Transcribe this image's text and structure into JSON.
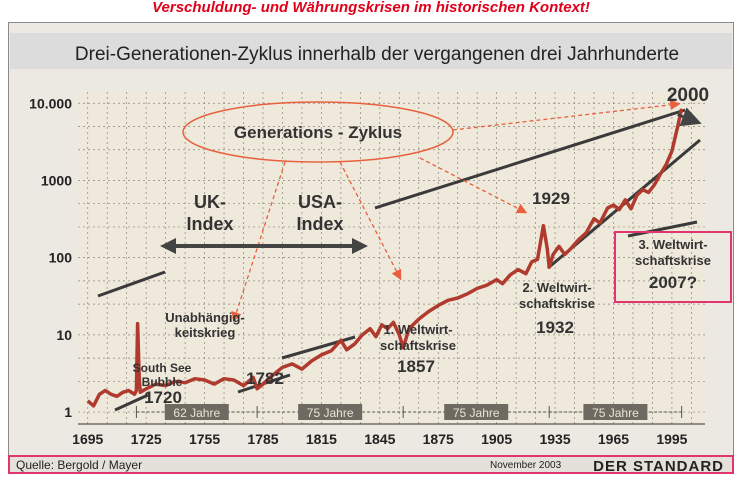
{
  "page_title": "Verschuldung- und Währungskrisen im historischen Kontext!",
  "chart_data": {
    "type": "line",
    "title": "Drei-Generationen-Zyklus innerhalb der vergangenen drei Jahrhunderte",
    "y_scale": "log",
    "ylim": [
      0.7,
      14000
    ],
    "xlim": [
      1690,
      2012
    ],
    "y_ticks": [
      1,
      10,
      100,
      1000,
      10000
    ],
    "y_tick_labels": [
      "1",
      "10",
      "100",
      "1000",
      "10.000"
    ],
    "x_ticks": [
      1695,
      1725,
      1755,
      1785,
      1815,
      1845,
      1875,
      1905,
      1935,
      1965,
      1995
    ],
    "x_tick_labels": [
      "1695",
      "1725",
      "1755",
      "1785",
      "1815",
      "1845",
      "1875",
      "1905",
      "1935",
      "1965",
      "1995"
    ],
    "grid": true,
    "series": [
      {
        "points": [
          [
            1695,
            1.4
          ],
          [
            1698,
            1.2
          ],
          [
            1701,
            1.7
          ],
          [
            1704,
            1.9
          ],
          [
            1707,
            1.7
          ],
          [
            1710,
            1.6
          ],
          [
            1713,
            1.8
          ],
          [
            1716,
            1.9
          ],
          [
            1719,
            1.7
          ],
          [
            1720,
            1.9
          ],
          [
            1720.6,
            14
          ],
          [
            1721.5,
            2.6
          ],
          [
            1722,
            1.8
          ],
          [
            1725,
            2.0
          ],
          [
            1730,
            2.3
          ],
          [
            1735,
            2.2
          ],
          [
            1740,
            2.5
          ],
          [
            1745,
            2.4
          ],
          [
            1750,
            2.7
          ],
          [
            1755,
            2.6
          ],
          [
            1760,
            2.3
          ],
          [
            1765,
            2.7
          ],
          [
            1770,
            2.6
          ],
          [
            1775,
            2.2
          ],
          [
            1780,
            2.8
          ],
          [
            1782,
            2.0
          ],
          [
            1785,
            2.3
          ],
          [
            1790,
            3.0
          ],
          [
            1795,
            3.8
          ],
          [
            1800,
            4.2
          ],
          [
            1805,
            3.6
          ],
          [
            1810,
            4.6
          ],
          [
            1815,
            5.5
          ],
          [
            1820,
            6.2
          ],
          [
            1825,
            8.5
          ],
          [
            1828,
            6.4
          ],
          [
            1832,
            7.6
          ],
          [
            1836,
            10.0
          ],
          [
            1840,
            12.0
          ],
          [
            1843,
            9.5
          ],
          [
            1846,
            13.5
          ],
          [
            1849,
            12.0
          ],
          [
            1852,
            14.5
          ],
          [
            1855,
            10.0
          ],
          [
            1857,
            6.8
          ],
          [
            1860,
            12.0
          ],
          [
            1865,
            16.0
          ],
          [
            1870,
            20.0
          ],
          [
            1875,
            24.0
          ],
          [
            1880,
            28.0
          ],
          [
            1885,
            30.0
          ],
          [
            1890,
            34.0
          ],
          [
            1895,
            40.0
          ],
          [
            1900,
            44.0
          ],
          [
            1905,
            52.0
          ],
          [
            1908,
            46.0
          ],
          [
            1912,
            60.0
          ],
          [
            1916,
            70.0
          ],
          [
            1920,
            62.0
          ],
          [
            1923,
            88.0
          ],
          [
            1926,
            95.0
          ],
          [
            1929,
            260.0
          ],
          [
            1931,
            130.0
          ],
          [
            1932,
            75.0
          ],
          [
            1934,
            110.0
          ],
          [
            1937,
            140.0
          ],
          [
            1940,
            110.0
          ],
          [
            1943,
            130.0
          ],
          [
            1947,
            170.0
          ],
          [
            1951,
            210.0
          ],
          [
            1955,
            320.0
          ],
          [
            1958,
            280.0
          ],
          [
            1962,
            440.0
          ],
          [
            1965,
            480.0
          ],
          [
            1968,
            420.0
          ],
          [
            1971,
            560.0
          ],
          [
            1974,
            430.0
          ],
          [
            1977,
            640.0
          ],
          [
            1980,
            760.0
          ],
          [
            1983,
            700.0
          ],
          [
            1986,
            880.0
          ],
          [
            1989,
            1200.0
          ],
          [
            1992,
            1600.0
          ],
          [
            1995,
            2400.0
          ],
          [
            1998,
            5000.0
          ],
          [
            2000,
            8500.0
          ]
        ]
      }
    ],
    "annotations": {
      "cycle_label": "Generations - Zyklus",
      "uk_index": [
        "UK-",
        "Index"
      ],
      "usa_index": [
        "USA-",
        "Index"
      ],
      "unabhaengig": [
        "Unabhängig-",
        "keitskrieg"
      ],
      "south_see": [
        "South See",
        "Bubble"
      ],
      "y1720": "1720",
      "y1782": "1782",
      "krise1": [
        "1. Weltwirt-",
        "schaftskrise"
      ],
      "y1857": "1857",
      "y1929": "1929",
      "krise2": [
        "2. Weltwirt-",
        "schaftskrise"
      ],
      "y1932": "1932",
      "krise3": [
        "3. Weltwirt-",
        "schaftskrise",
        "2007?"
      ],
      "y2000": "2000",
      "cycle_years": [
        "62 Jahre",
        "75 Jahre",
        "75 Jahre",
        "75 Jahre"
      ]
    }
  },
  "footer": {
    "source": "Quelle: Bergold / Mayer",
    "date": "November 2003",
    "brand": "DER STANDARD"
  },
  "colors": {
    "series": "#b03a2e",
    "highlight": "#e0356f",
    "dashed_arrow": "#e8603c",
    "title_red": "#e0001a"
  }
}
